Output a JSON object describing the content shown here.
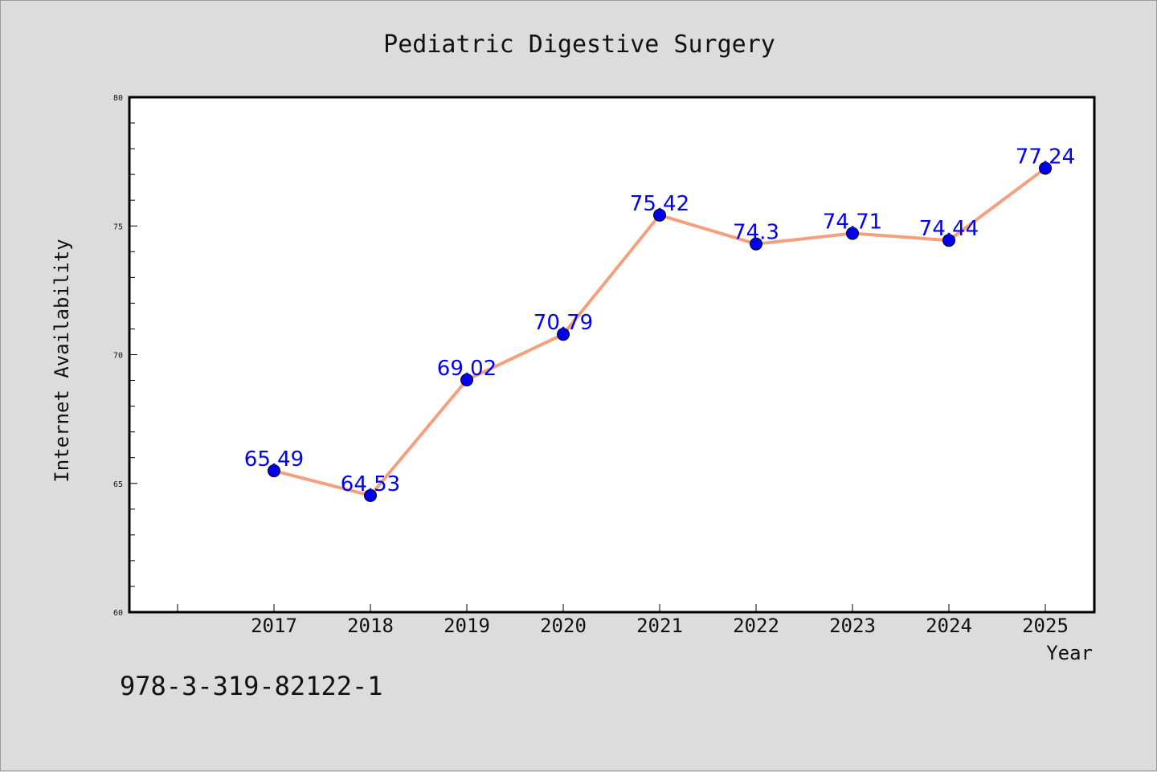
{
  "chart_data": {
    "type": "line",
    "title": "Pediatric Digestive Surgery",
    "xlabel": "Year",
    "ylabel": "Internet Availability",
    "categories": [
      "2017",
      "2018",
      "2019",
      "2020",
      "2021",
      "2022",
      "2023",
      "2024",
      "2025"
    ],
    "series": [
      {
        "values": [
          65.49,
          64.53,
          69.02,
          70.79,
          75.42,
          74.3,
          74.71,
          74.44,
          77.24
        ],
        "data_labels": [
          "65.49",
          "64.53",
          "69.02",
          "70.79",
          "75.42",
          "74.3",
          "74.71",
          "74.44",
          "77.24"
        ],
        "line_color": "#f4a07e",
        "marker_color": "#0000ee"
      }
    ],
    "ylim": [
      60,
      80
    ],
    "yticks": [
      "60",
      "65",
      "70",
      "75",
      "80"
    ],
    "grid": false,
    "legend": "none"
  },
  "footer": {
    "isbn": "978-3-319-82122-1"
  },
  "colors": {
    "background": "#dcdcdc",
    "plot_background": "#ffffff",
    "line": "#f4a07e",
    "marker": "#0000ee",
    "data_label": "#0000ee"
  }
}
